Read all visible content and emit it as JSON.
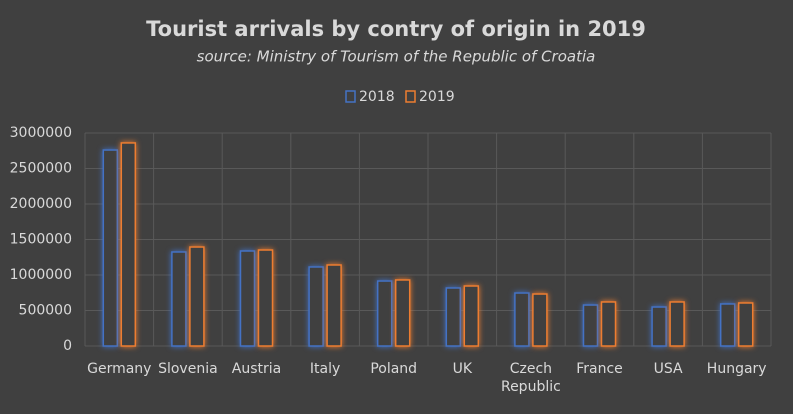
{
  "chart_data": {
    "type": "bar",
    "title": "Tourist arrivals by contry of origin in 2019",
    "subtitle": "source: Ministry of Tourism of the Republic of Croatia",
    "categories": [
      "Germany",
      "Slovenia",
      "Austria",
      "Italy",
      "Poland",
      "UK",
      "Czech Republic",
      "France",
      "USA",
      "Hungary"
    ],
    "series": [
      {
        "name": "2018",
        "color": "#4472c4",
        "values": [
          2760000,
          1324000,
          1338000,
          1113000,
          915000,
          817000,
          746000,
          577000,
          549000,
          592000
        ]
      },
      {
        "name": "2019",
        "color": "#ed7d31",
        "values": [
          2860000,
          1394000,
          1352000,
          1141000,
          930000,
          845000,
          732000,
          620000,
          620000,
          606000
        ]
      }
    ],
    "ylim": [
      0,
      3000000
    ],
    "yticks": [
      0,
      500000,
      1000000,
      1500000,
      2000000,
      2500000,
      3000000
    ],
    "grid": true,
    "legend": "top"
  }
}
